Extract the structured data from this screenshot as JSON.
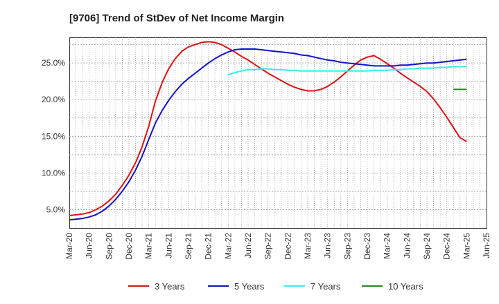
{
  "chart_data": {
    "type": "line",
    "title": "[9706]  Trend of StDev of Net Income Margin",
    "xlabel": "",
    "ylabel": "",
    "x_ticks": [
      "Mar-20",
      "Jun-20",
      "Sep-20",
      "Dec-20",
      "Mar-21",
      "Jun-21",
      "Sep-21",
      "Dec-21",
      "Mar-22",
      "Jun-22",
      "Sep-22",
      "Dec-22",
      "Mar-23",
      "Jun-23",
      "Sep-23",
      "Dec-23",
      "Mar-24",
      "Jun-24",
      "Sep-24",
      "Dec-24",
      "Mar-25",
      "Jun-25"
    ],
    "y_ticks": [
      "5.0%",
      "10.0%",
      "15.0%",
      "20.0%",
      "25.0%"
    ],
    "y_tick_values": [
      5,
      10,
      15,
      20,
      25
    ],
    "ylim": [
      2.5,
      28.5
    ],
    "grid": true,
    "legend_position": "bottom",
    "series": [
      {
        "name": "3 Years",
        "color": "#dd1111",
        "points": [
          [
            "Mar-20",
            4.2
          ],
          [
            "Apr-20",
            4.3
          ],
          [
            "May-20",
            4.4
          ],
          [
            "Jun-20",
            4.6
          ],
          [
            "Jul-20",
            5.0
          ],
          [
            "Aug-20",
            5.5
          ],
          [
            "Sep-20",
            6.2
          ],
          [
            "Oct-20",
            7.1
          ],
          [
            "Nov-20",
            8.3
          ],
          [
            "Dec-20",
            9.7
          ],
          [
            "Jan-21",
            11.4
          ],
          [
            "Feb-21",
            13.6
          ],
          [
            "Mar-21",
            16.4
          ],
          [
            "Apr-21",
            19.8
          ],
          [
            "May-21",
            22.3
          ],
          [
            "Jun-21",
            24.2
          ],
          [
            "Jul-21",
            25.6
          ],
          [
            "Aug-21",
            26.6
          ],
          [
            "Sep-21",
            27.2
          ],
          [
            "Oct-21",
            27.5
          ],
          [
            "Nov-21",
            27.8
          ],
          [
            "Dec-21",
            27.9
          ],
          [
            "Jan-22",
            27.8
          ],
          [
            "Feb-22",
            27.5
          ],
          [
            "Mar-22",
            27.0
          ],
          [
            "Apr-22",
            26.5
          ],
          [
            "May-22",
            25.9
          ],
          [
            "Jun-22",
            25.4
          ],
          [
            "Jul-22",
            24.8
          ],
          [
            "Aug-22",
            24.2
          ],
          [
            "Sep-22",
            23.6
          ],
          [
            "Oct-22",
            23.1
          ],
          [
            "Nov-22",
            22.6
          ],
          [
            "Dec-22",
            22.1
          ],
          [
            "Jan-23",
            21.7
          ],
          [
            "Feb-23",
            21.4
          ],
          [
            "Mar-23",
            21.2
          ],
          [
            "Apr-23",
            21.2
          ],
          [
            "May-23",
            21.4
          ],
          [
            "Jun-23",
            21.8
          ],
          [
            "Jul-23",
            22.4
          ],
          [
            "Aug-23",
            23.1
          ],
          [
            "Sep-23",
            23.9
          ],
          [
            "Oct-23",
            24.7
          ],
          [
            "Nov-23",
            25.4
          ],
          [
            "Dec-23",
            25.8
          ],
          [
            "Jan-24",
            26.0
          ],
          [
            "Feb-24",
            25.5
          ],
          [
            "Mar-24",
            24.9
          ],
          [
            "Apr-24",
            24.3
          ],
          [
            "May-24",
            23.6
          ],
          [
            "Jun-24",
            23.0
          ],
          [
            "Jul-24",
            22.4
          ],
          [
            "Aug-24",
            21.8
          ],
          [
            "Sep-24",
            21.1
          ],
          [
            "Oct-24",
            20.1
          ],
          [
            "Nov-24",
            18.9
          ],
          [
            "Dec-24",
            17.6
          ],
          [
            "Jan-25",
            16.2
          ],
          [
            "Feb-25",
            14.8
          ],
          [
            "Mar-25",
            14.3
          ]
        ]
      },
      {
        "name": "5 Years",
        "color": "#1111cc",
        "points": [
          [
            "Mar-20",
            3.6
          ],
          [
            "Apr-20",
            3.7
          ],
          [
            "May-20",
            3.8
          ],
          [
            "Jun-20",
            4.0
          ],
          [
            "Jul-20",
            4.3
          ],
          [
            "Aug-20",
            4.8
          ],
          [
            "Sep-20",
            5.5
          ],
          [
            "Oct-20",
            6.4
          ],
          [
            "Nov-20",
            7.5
          ],
          [
            "Dec-20",
            8.8
          ],
          [
            "Jan-21",
            10.4
          ],
          [
            "Feb-21",
            12.3
          ],
          [
            "Mar-21",
            14.6
          ],
          [
            "Apr-21",
            16.8
          ],
          [
            "May-21",
            18.5
          ],
          [
            "Jun-21",
            19.9
          ],
          [
            "Jul-21",
            21.1
          ],
          [
            "Aug-21",
            22.1
          ],
          [
            "Sep-21",
            22.9
          ],
          [
            "Oct-21",
            23.6
          ],
          [
            "Nov-21",
            24.3
          ],
          [
            "Dec-21",
            25.0
          ],
          [
            "Jan-22",
            25.6
          ],
          [
            "Feb-22",
            26.1
          ],
          [
            "Mar-22",
            26.5
          ],
          [
            "Apr-22",
            26.8
          ],
          [
            "May-22",
            26.9
          ],
          [
            "Jun-22",
            26.9
          ],
          [
            "Jul-22",
            26.9
          ],
          [
            "Aug-22",
            26.8
          ],
          [
            "Sep-22",
            26.7
          ],
          [
            "Oct-22",
            26.6
          ],
          [
            "Nov-22",
            26.5
          ],
          [
            "Dec-22",
            26.4
          ],
          [
            "Jan-23",
            26.3
          ],
          [
            "Feb-23",
            26.1
          ],
          [
            "Mar-23",
            26.0
          ],
          [
            "Apr-23",
            25.8
          ],
          [
            "May-23",
            25.6
          ],
          [
            "Jun-23",
            25.4
          ],
          [
            "Jul-23",
            25.3
          ],
          [
            "Aug-23",
            25.1
          ],
          [
            "Sep-23",
            25.0
          ],
          [
            "Oct-23",
            24.9
          ],
          [
            "Nov-23",
            24.8
          ],
          [
            "Dec-23",
            24.7
          ],
          [
            "Jan-24",
            24.6
          ],
          [
            "Feb-24",
            24.6
          ],
          [
            "Mar-24",
            24.6
          ],
          [
            "Apr-24",
            24.6
          ],
          [
            "May-24",
            24.7
          ],
          [
            "Jun-24",
            24.7
          ],
          [
            "Jul-24",
            24.8
          ],
          [
            "Aug-24",
            24.9
          ],
          [
            "Sep-24",
            25.0
          ],
          [
            "Oct-24",
            25.0
          ],
          [
            "Nov-24",
            25.1
          ],
          [
            "Dec-24",
            25.2
          ],
          [
            "Jan-25",
            25.3
          ],
          [
            "Feb-25",
            25.4
          ],
          [
            "Mar-25",
            25.5
          ]
        ]
      },
      {
        "name": "7 Years",
        "color": "#33eeee",
        "points": [
          [
            "Mar-22",
            23.4
          ],
          [
            "Apr-22",
            23.7
          ],
          [
            "May-22",
            23.9
          ],
          [
            "Jun-22",
            24.1
          ],
          [
            "Jul-22",
            24.1
          ],
          [
            "Aug-22",
            24.2
          ],
          [
            "Sep-22",
            24.2
          ],
          [
            "Oct-22",
            24.1
          ],
          [
            "Nov-22",
            24.1
          ],
          [
            "Dec-22",
            24.0
          ],
          [
            "Jan-23",
            24.0
          ],
          [
            "Feb-23",
            23.9
          ],
          [
            "Mar-23",
            23.9
          ],
          [
            "Apr-23",
            23.9
          ],
          [
            "May-23",
            23.9
          ],
          [
            "Jun-23",
            23.9
          ],
          [
            "Jul-23",
            23.9
          ],
          [
            "Aug-23",
            23.9
          ],
          [
            "Sep-23",
            23.9
          ],
          [
            "Oct-23",
            23.9
          ],
          [
            "Nov-23",
            23.9
          ],
          [
            "Dec-23",
            23.9
          ],
          [
            "Jan-24",
            24.0
          ],
          [
            "Feb-24",
            24.0
          ],
          [
            "Mar-24",
            24.0
          ],
          [
            "Apr-24",
            24.1
          ],
          [
            "May-24",
            24.1
          ],
          [
            "Jun-24",
            24.2
          ],
          [
            "Jul-24",
            24.2
          ],
          [
            "Aug-24",
            24.3
          ],
          [
            "Sep-24",
            24.3
          ],
          [
            "Oct-24",
            24.3
          ],
          [
            "Nov-24",
            24.4
          ],
          [
            "Dec-24",
            24.4
          ],
          [
            "Jan-25",
            24.5
          ],
          [
            "Feb-25",
            24.5
          ],
          [
            "Mar-25",
            24.5
          ]
        ]
      },
      {
        "name": "10 Years",
        "color": "#228822",
        "points": [
          [
            "Jan-25",
            21.4
          ],
          [
            "Feb-25",
            21.4
          ],
          [
            "Mar-25",
            21.4
          ]
        ]
      }
    ]
  }
}
